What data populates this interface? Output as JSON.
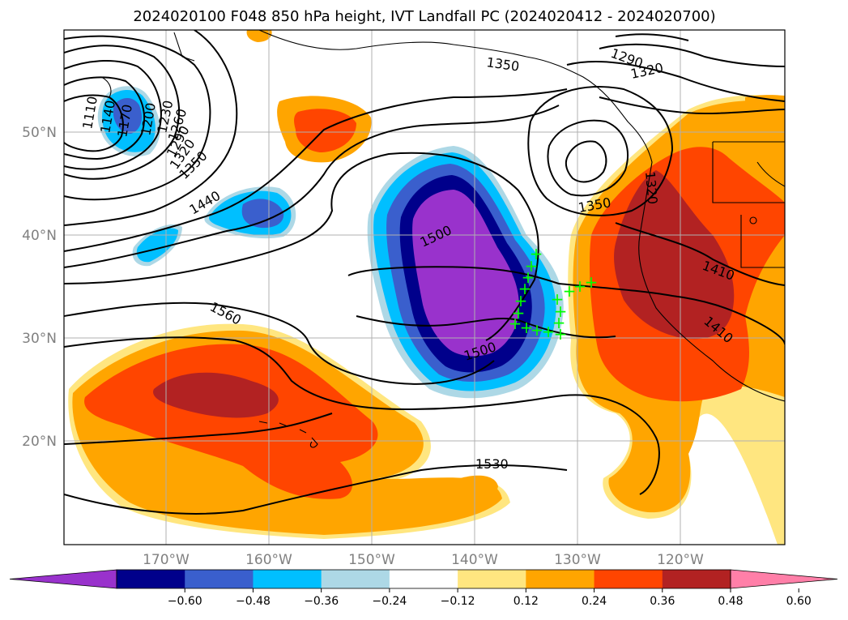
{
  "title": "2024020100 F048 850 hPa height, IVT Landfall PC (2024020412 - 2024020700)",
  "lat_labels": [
    "50°N",
    "40°N",
    "30°N",
    "20°N"
  ],
  "lon_labels": [
    "170°W",
    "160°W",
    "150°W",
    "140°W",
    "130°W",
    "120°W"
  ],
  "contour_labels": [
    "1110",
    "1140",
    "1170",
    "1200",
    "1230",
    "1260",
    "1290",
    "1320",
    "1350",
    "1440",
    "1350",
    "1290",
    "1320",
    "1350",
    "1500",
    "1500",
    "1410",
    "1410",
    "1560",
    "1530",
    "1320"
  ],
  "colorbar": {
    "tick_labels": [
      "−0.60",
      "−0.48",
      "−0.36",
      "−0.24",
      "−0.12",
      "0.12",
      "0.24",
      "0.36",
      "0.48",
      "0.60"
    ],
    "colors": [
      "#9932cc",
      "#00008b",
      "#3a5fcd",
      "#00bfff",
      "#add8e6",
      "#ffffff",
      "#ffe680",
      "#ffa500",
      "#ff4500",
      "#b22222",
      "#ff7fa8"
    ]
  },
  "markers": {
    "symbol": "+",
    "color": "#00ff00"
  }
}
